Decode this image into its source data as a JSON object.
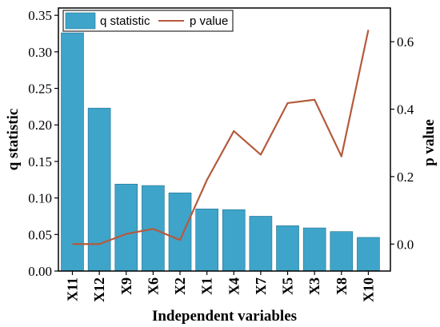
{
  "chart_data": {
    "type": "bar",
    "xlabel": "Independent variables",
    "ylabel": "q statistic",
    "y2label": "p value",
    "categories": [
      "X11",
      "X12",
      "X9",
      "X6",
      "X2",
      "X1",
      "X4",
      "X7",
      "X5",
      "X3",
      "X8",
      "X10"
    ],
    "series": [
      {
        "name": "q statistic",
        "type": "bar",
        "axis": "left",
        "color": "#3fa4c9",
        "values": [
          0.326,
          0.223,
          0.119,
          0.117,
          0.107,
          0.085,
          0.084,
          0.075,
          0.062,
          0.059,
          0.054,
          0.046
        ]
      },
      {
        "name": "p value",
        "type": "line",
        "axis": "right",
        "color": "#b55a3c",
        "values": [
          0.0,
          0.0,
          0.03,
          0.045,
          0.012,
          0.19,
          0.335,
          0.265,
          0.418,
          0.428,
          0.26,
          0.635
        ]
      }
    ],
    "ylim": [
      0,
      0.36
    ],
    "y2lim": [
      -0.08,
      0.7
    ],
    "yticks": [
      "0.00",
      "0.05",
      "0.10",
      "0.15",
      "0.20",
      "0.25",
      "0.30",
      "0.35"
    ],
    "y2ticks": [
      "0.0",
      "0.2",
      "0.4",
      "0.6"
    ],
    "legend": "top-left",
    "grid": false
  }
}
